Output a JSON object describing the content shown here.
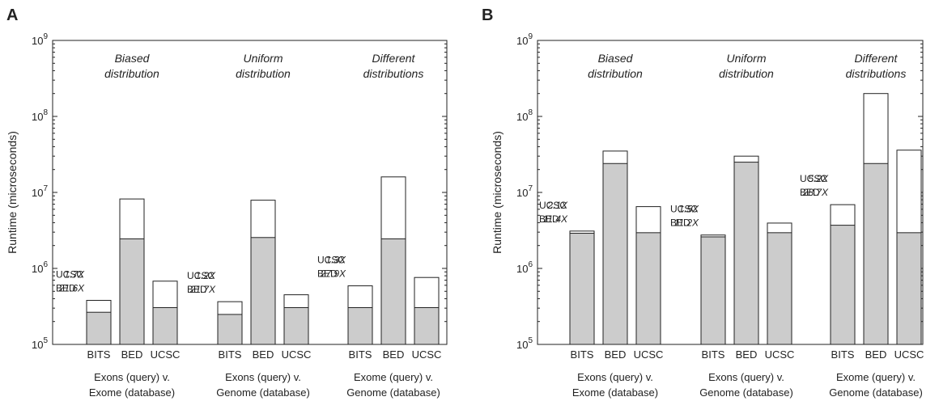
{
  "chart_data": [
    {
      "panel": "A",
      "type": "bar",
      "stacked": true,
      "ylabel": "Runtime (microseconds)",
      "yscale": "log",
      "ylim": [
        100000,
        1000000000
      ],
      "yticks": [
        "10^5",
        "10^6",
        "10^7",
        "10^8",
        "10^9"
      ],
      "grid": false,
      "groups": [
        {
          "distribution": [
            "Biased",
            "distribution"
          ],
          "label": [
            "Exons (query) v.",
            "Exome (database)"
          ],
          "annotation": {
            "ucsc": "UCSC",
            "ucsc_speedup": "1.7X",
            "bed": "BED",
            "bed_speedup": "21.6X"
          },
          "bars": [
            {
              "category": "BITS",
              "total": 380000,
              "shaded": 265000
            },
            {
              "category": "BED",
              "total": 8200000,
              "shaded": 2450000
            },
            {
              "category": "UCSC",
              "total": 680000,
              "shaded": 305000
            }
          ]
        },
        {
          "distribution": [
            "Uniform",
            "distribution"
          ],
          "label": [
            "Exons (query) v.",
            "Genome (database)"
          ],
          "annotation": {
            "ucsc": "UCSC",
            "ucsc_speedup": "1.2X",
            "bed": "BED",
            "bed_speedup": "21.7X"
          },
          "bars": [
            {
              "category": "BITS",
              "total": 365000,
              "shaded": 248000
            },
            {
              "category": "BED",
              "total": 7900000,
              "shaded": 2550000
            },
            {
              "category": "UCSC",
              "total": 450000,
              "shaded": 305000
            }
          ]
        },
        {
          "distribution": [
            "Different",
            "distributions"
          ],
          "label": [
            "Exome (query) v.",
            "Genome (database)"
          ],
          "annotation": {
            "ucsc": "UCSC",
            "ucsc_speedup": "1.3X",
            "bed": "BED",
            "bed_speedup": "27.9X"
          },
          "bars": [
            {
              "category": "BITS",
              "total": 590000,
              "shaded": 305000
            },
            {
              "category": "BED",
              "total": 16000000,
              "shaded": 2450000
            },
            {
              "category": "UCSC",
              "total": 760000,
              "shaded": 305000
            }
          ]
        }
      ]
    },
    {
      "panel": "B",
      "type": "bar",
      "stacked": true,
      "ylabel": "Runtime (microseconds)",
      "yscale": "log",
      "ylim": [
        100000,
        1000000000
      ],
      "yticks": [
        "10^5",
        "10^6",
        "10^7",
        "10^8",
        "10^9"
      ],
      "grid": false,
      "groups": [
        {
          "distribution": [
            "Biased",
            "distribution"
          ],
          "label": [
            "Exons (query) v.",
            "Exome (database)"
          ],
          "annotation": {
            "ucsc": "UCSC",
            "ucsc_speedup": "2.1X",
            "bed": "BED",
            "bed_speedup": "11.4X"
          },
          "bars": [
            {
              "category": "BITS",
              "total": 3100000,
              "shaded": 2900000
            },
            {
              "category": "BED",
              "total": 35000000,
              "shaded": 24000000
            },
            {
              "category": "UCSC",
              "total": 6500000,
              "shaded": 2950000
            }
          ]
        },
        {
          "distribution": [
            "Uniform",
            "distribution"
          ],
          "label": [
            "Exons (query) v.",
            "Genome (database)"
          ],
          "annotation": {
            "ucsc": "UCSC",
            "ucsc_speedup": "1.5X",
            "bed": "BED",
            "bed_speedup": "11.2X"
          },
          "bars": [
            {
              "category": "BITS",
              "total": 2750000,
              "shaded": 2600000
            },
            {
              "category": "BED",
              "total": 30000000,
              "shaded": 25000000
            },
            {
              "category": "UCSC",
              "total": 3950000,
              "shaded": 2950000
            }
          ]
        },
        {
          "distribution": [
            "Different",
            "distributions"
          ],
          "label": [
            "Exome (query) v.",
            "Genome (database)"
          ],
          "annotation": {
            "ucsc": "UCSC",
            "ucsc_speedup": "5.2X",
            "bed": "BED",
            "bed_speedup": "28.7X"
          },
          "bars": [
            {
              "category": "BITS",
              "total": 6900000,
              "shaded": 3700000
            },
            {
              "category": "BED",
              "total": 200000000,
              "shaded": 24000000
            },
            {
              "category": "UCSC",
              "total": 36000000,
              "shaded": 2950000
            }
          ]
        }
      ]
    }
  ],
  "colors": {
    "shaded": "#cccccc",
    "unshaded": "#ffffff",
    "stroke": "#222222"
  }
}
